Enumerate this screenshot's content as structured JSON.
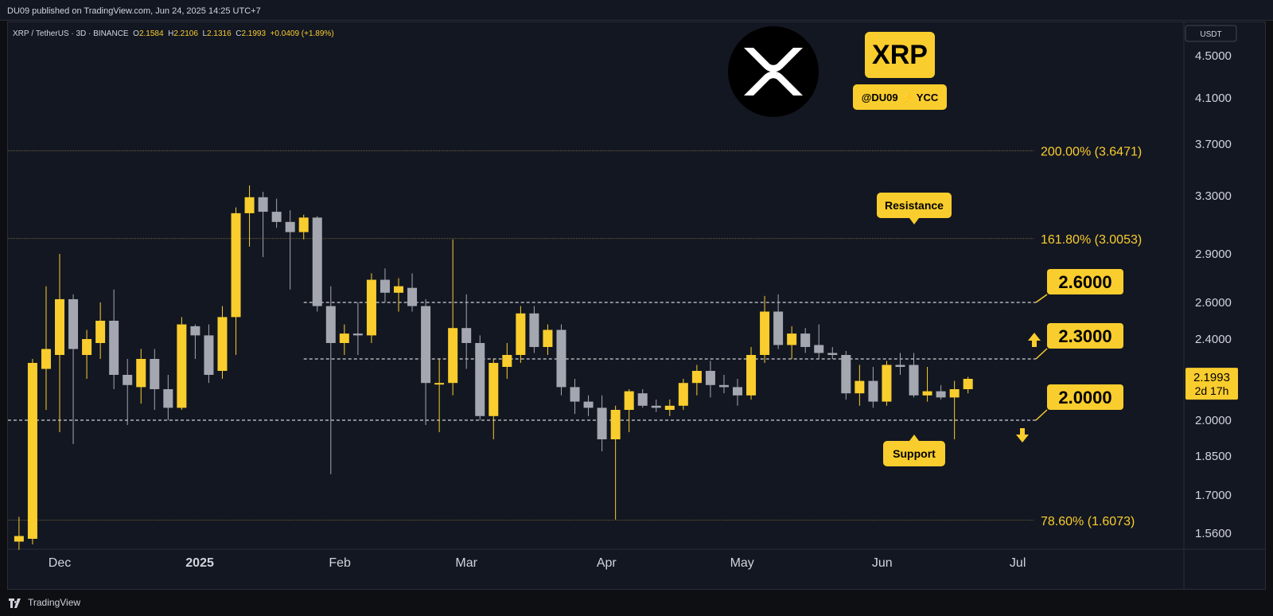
{
  "header": {
    "publish_text": "DU09 published on TradingView.com, Jun 24, 2025 14:25 UTC+7"
  },
  "symbol": {
    "name": "XRP / TetherUS · 3D · BINANCE",
    "o_label": "O",
    "o": "2.1584",
    "h_label": "H",
    "h": "2.2106",
    "l_label": "L",
    "l": "2.1316",
    "c_label": "C",
    "c": "2.1993",
    "change": "+0.0409 (+1.89%)"
  },
  "branding": {
    "coin_label": "XRP",
    "tag": "@DU09 ⚡ YCC",
    "logo_icon": "xrp-logo-icon"
  },
  "footer": {
    "brand": "TradingView"
  },
  "colors": {
    "up": "#f9cd2d",
    "down": "#a4a7b0",
    "accent": "#f9cd2d",
    "background": "#131722",
    "grid_text": "#d1d4dc"
  },
  "chart_data": {
    "type": "candlestick",
    "currency": "USDT",
    "y_ticks": [
      4.5,
      4.1,
      3.7,
      3.3,
      2.9,
      2.6,
      2.4,
      2.2,
      2.0,
      1.85,
      1.7,
      1.56
    ],
    "y_tick_labels": [
      "4.5000",
      "4.1000",
      "3.7000",
      "3.3000",
      "2.9000",
      "2.6000",
      "2.4000",
      "",
      "2.0000",
      "1.8500",
      "1.7000",
      "1.5600"
    ],
    "x_ticks": [
      {
        "label": "Dec",
        "date": "2024-12-01"
      },
      {
        "label": "2025",
        "date": "2025-01-01",
        "bold": true
      },
      {
        "label": "Feb",
        "date": "2025-02-01"
      },
      {
        "label": "Mar",
        "date": "2025-03-01"
      },
      {
        "label": "Apr",
        "date": "2025-04-01"
      },
      {
        "label": "May",
        "date": "2025-05-01"
      },
      {
        "label": "Jun",
        "date": "2025-06-01"
      },
      {
        "label": "Jul",
        "date": "2025-07-01"
      }
    ],
    "candles": [
      {
        "date": "2024-11-22",
        "o": 1.53,
        "h": 1.62,
        "l": 1.5,
        "c": 1.55
      },
      {
        "date": "2024-11-25",
        "o": 1.54,
        "h": 2.3,
        "l": 1.52,
        "c": 2.28
      },
      {
        "date": "2024-11-28",
        "o": 2.25,
        "h": 2.7,
        "l": 2.05,
        "c": 2.35
      },
      {
        "date": "2024-12-01",
        "o": 2.32,
        "h": 2.9,
        "l": 1.95,
        "c": 2.62
      },
      {
        "date": "2024-12-04",
        "o": 2.62,
        "h": 2.65,
        "l": 1.9,
        "c": 2.35
      },
      {
        "date": "2024-12-07",
        "o": 2.32,
        "h": 2.45,
        "l": 2.2,
        "c": 2.4
      },
      {
        "date": "2024-12-10",
        "o": 2.38,
        "h": 2.6,
        "l": 2.3,
        "c": 2.5
      },
      {
        "date": "2024-12-13",
        "o": 2.5,
        "h": 2.68,
        "l": 2.15,
        "c": 2.22
      },
      {
        "date": "2024-12-16",
        "o": 2.22,
        "h": 2.3,
        "l": 1.98,
        "c": 2.17
      },
      {
        "date": "2024-12-19",
        "o": 2.16,
        "h": 2.35,
        "l": 2.08,
        "c": 2.3
      },
      {
        "date": "2024-12-22",
        "o": 2.3,
        "h": 2.35,
        "l": 2.05,
        "c": 2.15
      },
      {
        "date": "2024-12-25",
        "o": 2.15,
        "h": 2.22,
        "l": 2.0,
        "c": 2.06
      },
      {
        "date": "2024-12-28",
        "o": 2.06,
        "h": 2.52,
        "l": 2.05,
        "c": 2.48
      },
      {
        "date": "2024-12-31",
        "o": 2.47,
        "h": 2.48,
        "l": 2.3,
        "c": 2.42
      },
      {
        "date": "2025-01-03",
        "o": 2.42,
        "h": 2.48,
        "l": 2.18,
        "c": 2.22
      },
      {
        "date": "2025-01-06",
        "o": 2.24,
        "h": 2.58,
        "l": 2.2,
        "c": 2.52
      },
      {
        "date": "2025-01-09",
        "o": 2.52,
        "h": 3.22,
        "l": 2.32,
        "c": 3.18
      },
      {
        "date": "2025-01-12",
        "o": 3.18,
        "h": 3.38,
        "l": 2.95,
        "c": 3.29
      },
      {
        "date": "2025-01-15",
        "o": 3.29,
        "h": 3.33,
        "l": 2.88,
        "c": 3.19
      },
      {
        "date": "2025-01-18",
        "o": 3.19,
        "h": 3.28,
        "l": 3.08,
        "c": 3.12
      },
      {
        "date": "2025-01-21",
        "o": 3.12,
        "h": 3.2,
        "l": 2.68,
        "c": 3.05
      },
      {
        "date": "2025-01-24",
        "o": 3.05,
        "h": 3.17,
        "l": 3.0,
        "c": 3.15
      },
      {
        "date": "2025-01-27",
        "o": 3.15,
        "h": 3.16,
        "l": 2.55,
        "c": 2.58
      },
      {
        "date": "2025-01-30",
        "o": 2.58,
        "h": 2.7,
        "l": 1.78,
        "c": 2.38
      },
      {
        "date": "2025-02-02",
        "o": 2.38,
        "h": 2.48,
        "l": 2.32,
        "c": 2.43
      },
      {
        "date": "2025-02-05",
        "o": 2.43,
        "h": 2.6,
        "l": 2.32,
        "c": 2.42
      },
      {
        "date": "2025-02-08",
        "o": 2.42,
        "h": 2.78,
        "l": 2.38,
        "c": 2.74
      },
      {
        "date": "2025-02-11",
        "o": 2.74,
        "h": 2.81,
        "l": 2.6,
        "c": 2.66
      },
      {
        "date": "2025-02-14",
        "o": 2.66,
        "h": 2.75,
        "l": 2.55,
        "c": 2.7
      },
      {
        "date": "2025-02-17",
        "o": 2.69,
        "h": 2.78,
        "l": 2.55,
        "c": 2.58
      },
      {
        "date": "2025-02-20",
        "o": 2.58,
        "h": 2.62,
        "l": 1.98,
        "c": 2.18
      },
      {
        "date": "2025-02-23",
        "o": 2.18,
        "h": 2.3,
        "l": 1.95,
        "c": 2.18
      },
      {
        "date": "2025-02-26",
        "o": 2.18,
        "h": 3.0,
        "l": 2.12,
        "c": 2.46
      },
      {
        "date": "2025-03-01",
        "o": 2.46,
        "h": 2.65,
        "l": 2.25,
        "c": 2.38
      },
      {
        "date": "2025-03-04",
        "o": 2.38,
        "h": 2.42,
        "l": 2.0,
        "c": 2.02
      },
      {
        "date": "2025-03-07",
        "o": 2.02,
        "h": 2.3,
        "l": 1.92,
        "c": 2.28
      },
      {
        "date": "2025-03-10",
        "o": 2.26,
        "h": 2.38,
        "l": 2.2,
        "c": 2.32
      },
      {
        "date": "2025-03-13",
        "o": 2.32,
        "h": 2.58,
        "l": 2.28,
        "c": 2.54
      },
      {
        "date": "2025-03-16",
        "o": 2.54,
        "h": 2.58,
        "l": 2.33,
        "c": 2.36
      },
      {
        "date": "2025-03-19",
        "o": 2.36,
        "h": 2.48,
        "l": 2.32,
        "c": 2.45
      },
      {
        "date": "2025-03-22",
        "o": 2.45,
        "h": 2.48,
        "l": 2.12,
        "c": 2.16
      },
      {
        "date": "2025-03-25",
        "o": 2.16,
        "h": 2.2,
        "l": 2.03,
        "c": 2.09
      },
      {
        "date": "2025-03-28",
        "o": 2.09,
        "h": 2.12,
        "l": 2.02,
        "c": 2.06
      },
      {
        "date": "2025-03-31",
        "o": 2.06,
        "h": 2.12,
        "l": 1.87,
        "c": 1.92
      },
      {
        "date": "2025-04-03",
        "o": 1.92,
        "h": 2.07,
        "l": 1.61,
        "c": 2.05
      },
      {
        "date": "2025-04-06",
        "o": 2.05,
        "h": 2.15,
        "l": 1.95,
        "c": 2.14
      },
      {
        "date": "2025-04-09",
        "o": 2.13,
        "h": 2.15,
        "l": 2.06,
        "c": 2.07
      },
      {
        "date": "2025-04-12",
        "o": 2.07,
        "h": 2.1,
        "l": 2.04,
        "c": 2.06
      },
      {
        "date": "2025-04-15",
        "o": 2.05,
        "h": 2.1,
        "l": 2.02,
        "c": 2.07
      },
      {
        "date": "2025-04-18",
        "o": 2.07,
        "h": 2.2,
        "l": 2.05,
        "c": 2.18
      },
      {
        "date": "2025-04-21",
        "o": 2.18,
        "h": 2.27,
        "l": 2.12,
        "c": 2.24
      },
      {
        "date": "2025-04-24",
        "o": 2.24,
        "h": 2.29,
        "l": 2.11,
        "c": 2.17
      },
      {
        "date": "2025-04-27",
        "o": 2.17,
        "h": 2.22,
        "l": 2.13,
        "c": 2.16
      },
      {
        "date": "2025-04-30",
        "o": 2.16,
        "h": 2.2,
        "l": 2.07,
        "c": 2.12
      },
      {
        "date": "2025-05-03",
        "o": 2.12,
        "h": 2.36,
        "l": 2.1,
        "c": 2.32
      },
      {
        "date": "2025-05-06",
        "o": 2.32,
        "h": 2.64,
        "l": 2.28,
        "c": 2.55
      },
      {
        "date": "2025-05-09",
        "o": 2.55,
        "h": 2.65,
        "l": 2.35,
        "c": 2.37
      },
      {
        "date": "2025-05-12",
        "o": 2.37,
        "h": 2.47,
        "l": 2.3,
        "c": 2.43
      },
      {
        "date": "2025-05-15",
        "o": 2.43,
        "h": 2.46,
        "l": 2.33,
        "c": 2.36
      },
      {
        "date": "2025-05-18",
        "o": 2.37,
        "h": 2.48,
        "l": 2.3,
        "c": 2.33
      },
      {
        "date": "2025-05-21",
        "o": 2.33,
        "h": 2.36,
        "l": 2.3,
        "c": 2.32
      },
      {
        "date": "2025-05-24",
        "o": 2.32,
        "h": 2.34,
        "l": 2.1,
        "c": 2.13
      },
      {
        "date": "2025-05-27",
        "o": 2.13,
        "h": 2.27,
        "l": 2.07,
        "c": 2.19
      },
      {
        "date": "2025-05-30",
        "o": 2.19,
        "h": 2.26,
        "l": 2.06,
        "c": 2.09
      },
      {
        "date": "2025-06-02",
        "o": 2.09,
        "h": 2.29,
        "l": 2.07,
        "c": 2.27
      },
      {
        "date": "2025-06-05",
        "o": 2.27,
        "h": 2.33,
        "l": 2.22,
        "c": 2.26
      },
      {
        "date": "2025-06-08",
        "o": 2.27,
        "h": 2.33,
        "l": 2.11,
        "c": 2.12
      },
      {
        "date": "2025-06-11",
        "o": 2.12,
        "h": 2.26,
        "l": 2.09,
        "c": 2.14
      },
      {
        "date": "2025-06-14",
        "o": 2.14,
        "h": 2.17,
        "l": 2.1,
        "c": 2.11
      },
      {
        "date": "2025-06-17",
        "o": 2.11,
        "h": 2.19,
        "l": 1.92,
        "c": 2.15
      },
      {
        "date": "2025-06-20",
        "o": 2.15,
        "h": 2.21,
        "l": 2.13,
        "c": 2.2
      }
    ],
    "levels": [
      {
        "price": 2.6,
        "label": "2.6000",
        "style": "dashed",
        "from_date": "2025-01-24"
      },
      {
        "price": 2.3,
        "label": "2.3000",
        "style": "dashed",
        "from_date": "2025-01-24"
      },
      {
        "price": 2.0,
        "label": "2.0000",
        "style": "dashed",
        "from_date": "2024-11-15"
      }
    ],
    "fib_levels": [
      {
        "price": 3.6471,
        "label": "200.00% (3.6471)"
      },
      {
        "price": 3.0053,
        "label": "161.80% (3.0053)"
      },
      {
        "price": 1.6073,
        "label": "78.60% (1.6073)"
      }
    ],
    "callouts": {
      "resistance": "Resistance",
      "support": "Support"
    },
    "last_price": {
      "value": "2.1993",
      "countdown": "2d 17h"
    }
  }
}
